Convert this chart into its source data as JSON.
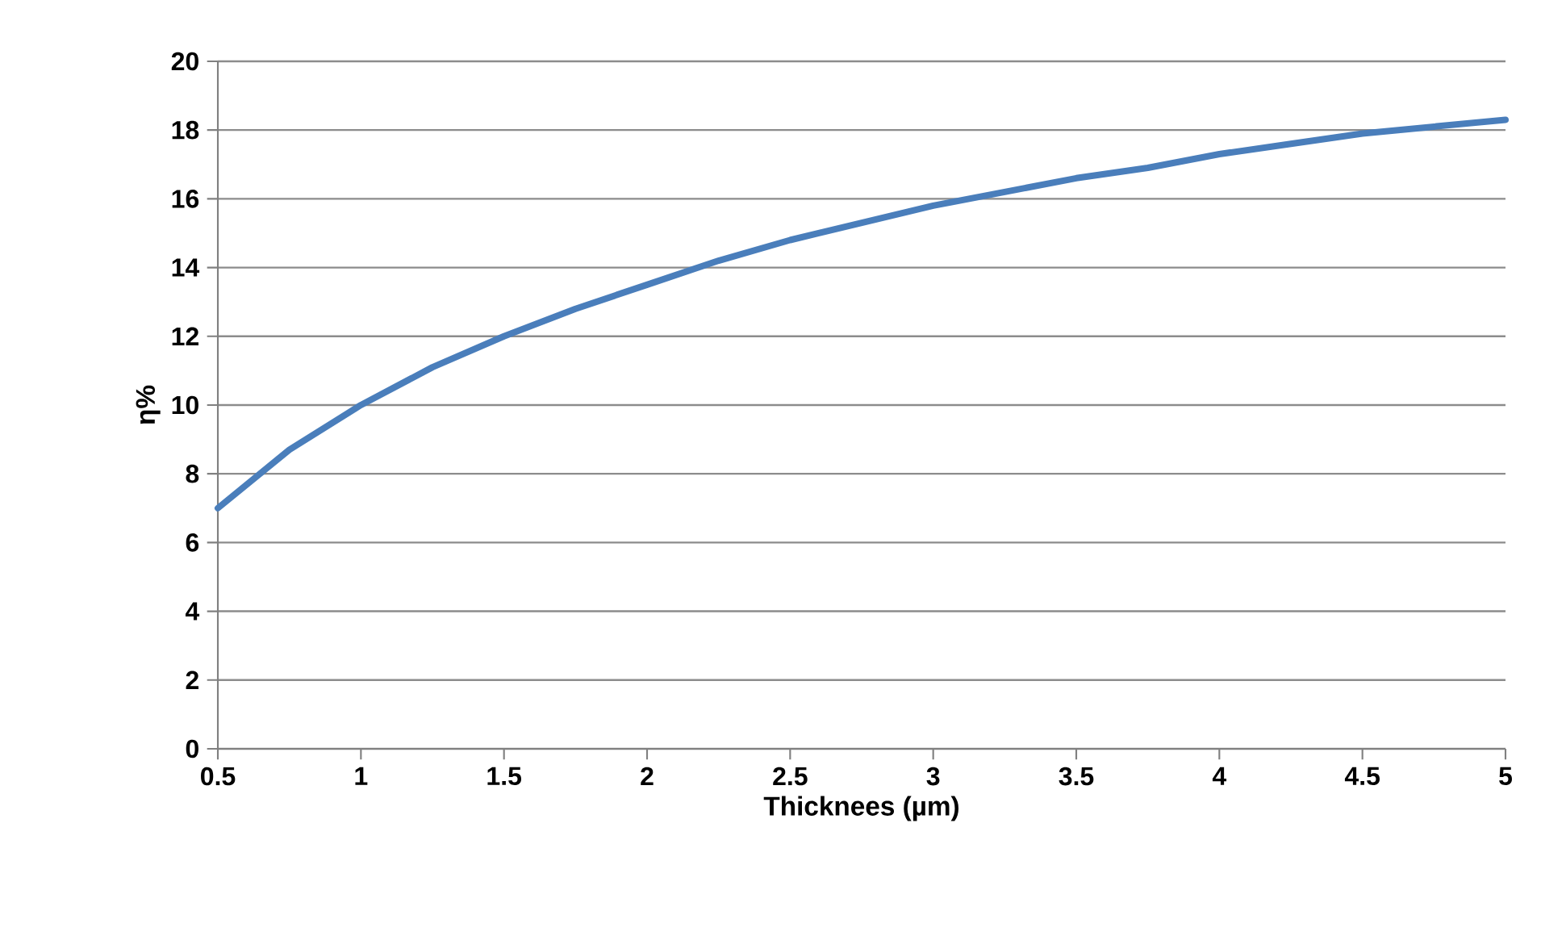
{
  "chart_data": {
    "type": "line",
    "xlabel": "Thicknees (µm)",
    "ylabel": "η%",
    "x": [
      0.5,
      0.75,
      1,
      1.25,
      1.5,
      1.75,
      2,
      2.25,
      2.5,
      2.75,
      3,
      3.25,
      3.5,
      3.75,
      4,
      4.25,
      4.5,
      4.75,
      5
    ],
    "series": [
      {
        "color": "#4a7ebb",
        "values": [
          7.0,
          8.7,
          10.0,
          11.1,
          12.0,
          12.8,
          13.5,
          14.2,
          14.8,
          15.3,
          15.8,
          16.2,
          16.6,
          16.9,
          17.3,
          17.6,
          17.9,
          18.1,
          18.3
        ]
      }
    ],
    "xlim": [
      0.5,
      5
    ],
    "xticks": [
      0.5,
      1,
      1.5,
      2,
      2.5,
      3,
      3.5,
      4,
      4.5,
      5
    ],
    "ylim": [
      0,
      20
    ],
    "yticks": [
      0,
      2,
      4,
      6,
      8,
      10,
      12,
      14,
      16,
      18,
      20
    ],
    "grid": "y",
    "marker": "none",
    "line_style": "solid"
  }
}
